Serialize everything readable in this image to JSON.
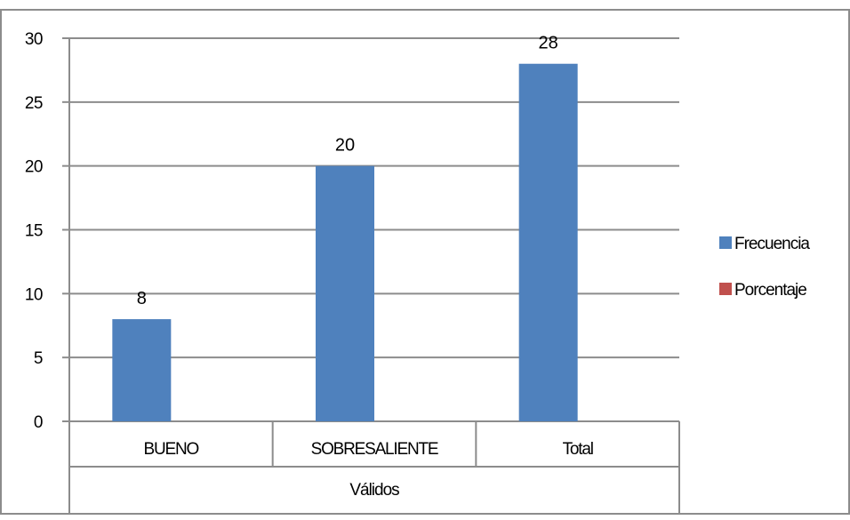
{
  "chart_data": {
    "type": "bar",
    "title": "",
    "xlabel": "",
    "ylabel": "",
    "categories": [
      "BUENO",
      "SOBRESALIENTE",
      "Total"
    ],
    "category_group": "Válidos",
    "series": [
      {
        "name": "Frecuencia",
        "values": [
          8,
          20,
          28
        ],
        "color": "#4F81BD"
      },
      {
        "name": "Porcentaje",
        "values": [
          null,
          null,
          null
        ],
        "color": "#C0504D"
      }
    ],
    "data_labels": [
      "8",
      "20",
      "28"
    ],
    "ylim": [
      0,
      30
    ],
    "yticks": [
      "0",
      "5",
      "10",
      "15",
      "20",
      "25",
      "30"
    ],
    "grid": true,
    "legend_position": "right"
  }
}
